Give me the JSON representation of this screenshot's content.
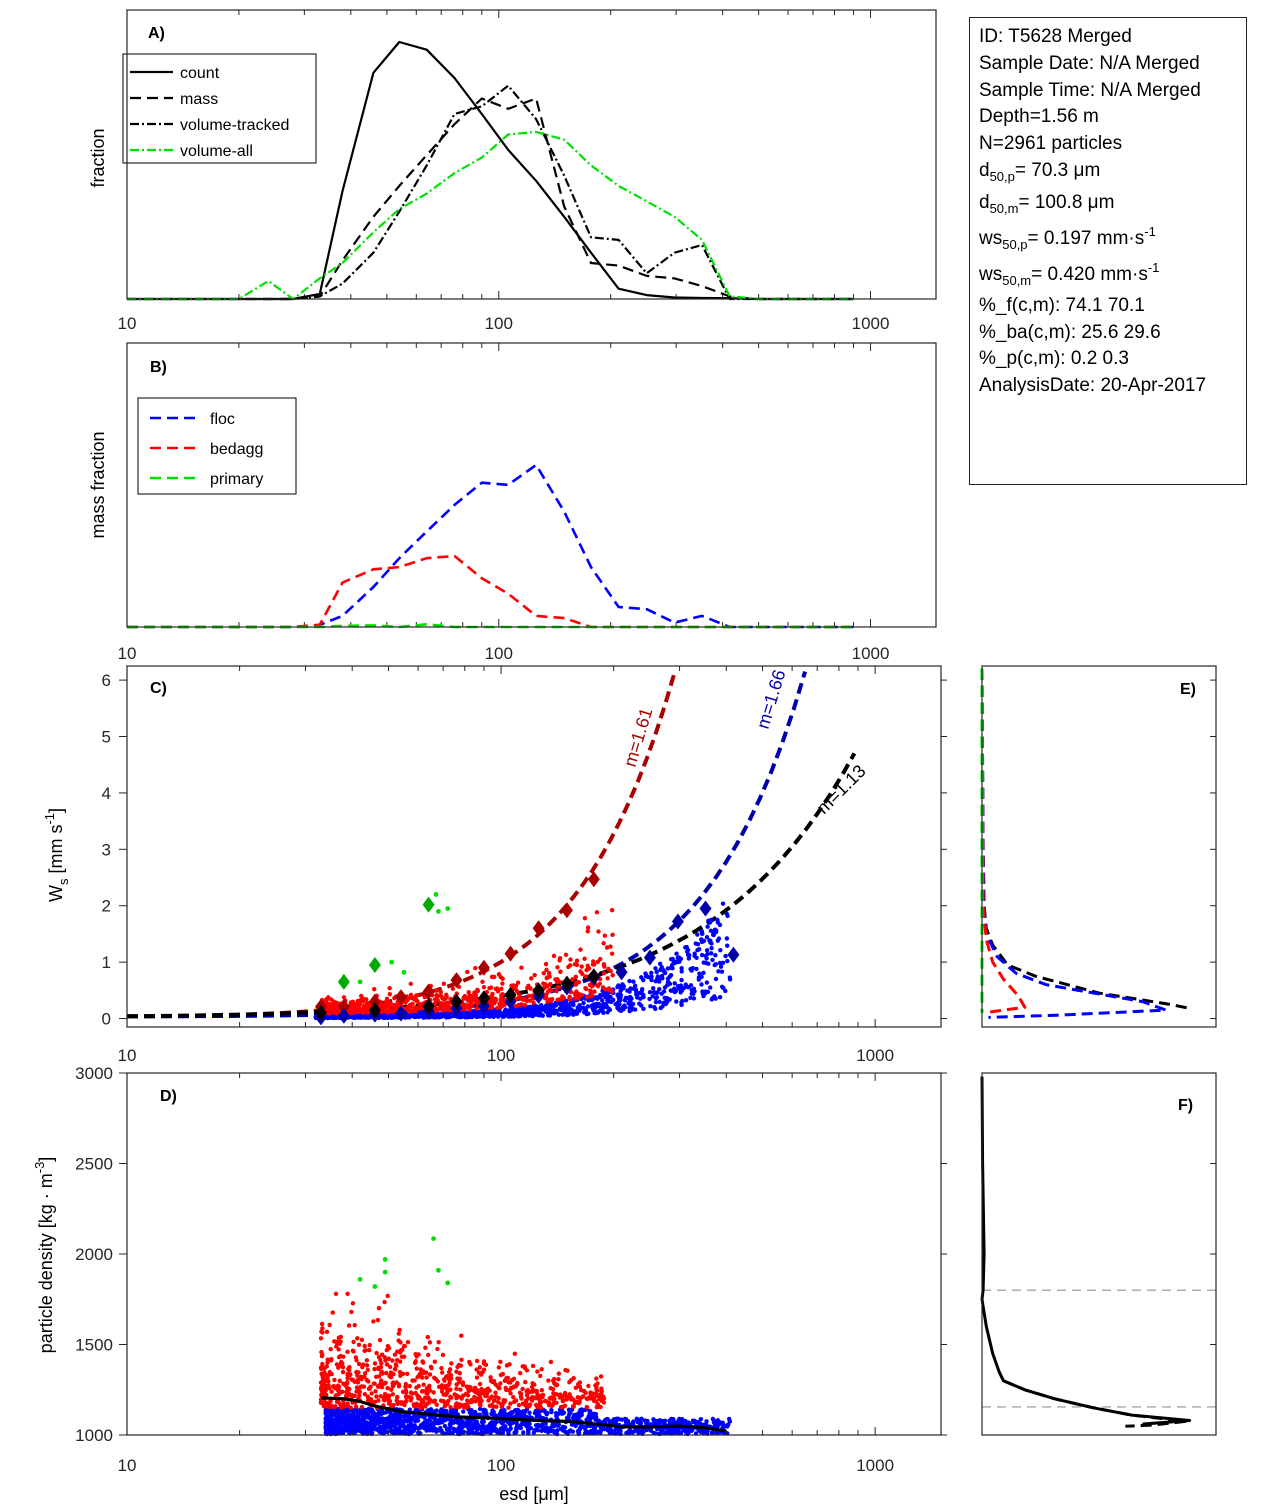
{
  "info_box": {
    "id": "ID: T5628 Merged",
    "sample_date": "Sample Date: N/A Merged",
    "sample_time": "Sample Time: N/A Merged",
    "depth": "Depth=1.56 m",
    "n": "N=2961 particles",
    "d50p_base": "d",
    "d50p_sub": "50,p",
    "d50p_val": "=  70.3 μm",
    "d50m_base": "d",
    "d50m_sub": "50,m",
    "d50m_val": "= 100.8 μm",
    "ws50p_base": "ws",
    "ws50p_sub": "50,p",
    "ws50p_val": "= 0.197 mm·s",
    "ws50p_sup": "-1",
    "ws50m_base": "ws",
    "ws50m_sub": "50,m",
    "ws50m_val": "= 0.420 mm·s",
    "ws50m_sup": "-1",
    "pct_f": "%_f(c,m): 74.1 70.1",
    "pct_ba": "%_ba(c,m): 25.6 29.6",
    "pct_p": "%_p(c,m): 0.2 0.3",
    "analysis_date": "AnalysisDate: 20-Apr-2017"
  },
  "chart_data": [
    {
      "panel": "A)",
      "type": "line",
      "xscale": "log",
      "xlim": [
        10,
        1500
      ],
      "xticks": [
        "10",
        "100",
        "1000"
      ],
      "ylabel": "fraction",
      "legend_position": "top-left",
      "x": [
        10,
        12,
        14,
        16,
        18,
        20,
        24,
        28,
        33,
        38,
        46,
        54,
        64,
        76,
        90,
        106,
        126,
        150,
        177,
        210,
        250,
        297,
        352,
        418,
        495,
        588,
        697,
        900
      ],
      "series": [
        {
          "name": "count",
          "style": "solid",
          "color": "#000000",
          "values": [
            0,
            0,
            0,
            0,
            0,
            0,
            0,
            0,
            0.02,
            0.42,
            0.88,
            1.0,
            0.97,
            0.86,
            0.72,
            0.58,
            0.46,
            0.32,
            0.18,
            0.04,
            0.015,
            0.006,
            0.004,
            0.003,
            0,
            0,
            0,
            0
          ]
        },
        {
          "name": "mass",
          "style": "dashed",
          "color": "#000000",
          "values": [
            0,
            0,
            0,
            0,
            0,
            0,
            0,
            0,
            0.01,
            0.15,
            0.32,
            0.44,
            0.56,
            0.68,
            0.78,
            0.74,
            0.78,
            0.36,
            0.14,
            0.13,
            0.09,
            0.08,
            0.05,
            0.01,
            0,
            0,
            0,
            0
          ]
        },
        {
          "name": "volume-tracked",
          "style": "dash-dot",
          "color": "#000000",
          "values": [
            0,
            0,
            0,
            0,
            0,
            0,
            0,
            0,
            0.01,
            0.06,
            0.18,
            0.34,
            0.52,
            0.72,
            0.75,
            0.83,
            0.7,
            0.48,
            0.24,
            0.23,
            0.1,
            0.18,
            0.21,
            0,
            0,
            0,
            0,
            0
          ]
        },
        {
          "name": "volume-all",
          "style": "dash-dot",
          "color": "#00e000",
          "values": [
            0,
            0,
            0,
            0,
            0,
            0,
            0.07,
            0,
            0.08,
            0.14,
            0.26,
            0.35,
            0.41,
            0.49,
            0.55,
            0.64,
            0.65,
            0.62,
            0.52,
            0.44,
            0.38,
            0.32,
            0.23,
            0.01,
            0,
            0,
            0,
            0
          ]
        }
      ]
    },
    {
      "panel": "B)",
      "type": "line",
      "xscale": "log",
      "xlim": [
        10,
        1500
      ],
      "xticks": [
        "10",
        "100",
        "1000"
      ],
      "ylabel": "mass fraction",
      "legend_position": "top-left",
      "x": [
        10,
        12,
        14,
        16,
        18,
        20,
        24,
        28,
        33,
        38,
        46,
        54,
        64,
        76,
        90,
        106,
        126,
        150,
        177,
        210,
        250,
        297,
        352,
        418,
        495,
        588,
        697,
        900
      ],
      "series": [
        {
          "name": "floc",
          "style": "dashed",
          "color": "#0000ff",
          "values": [
            0,
            0,
            0,
            0,
            0,
            0,
            0,
            0,
            0.01,
            0.05,
            0.18,
            0.31,
            0.43,
            0.55,
            0.65,
            0.64,
            0.73,
            0.52,
            0.27,
            0.09,
            0.08,
            0.02,
            0.05,
            0.0,
            0,
            0,
            0,
            0
          ]
        },
        {
          "name": "bedagg",
          "style": "dashed",
          "color": "#ff0000",
          "values": [
            0,
            0,
            0,
            0,
            0,
            0,
            0,
            0,
            0.01,
            0.2,
            0.26,
            0.27,
            0.31,
            0.32,
            0.22,
            0.15,
            0.05,
            0.04,
            0.0,
            0,
            0,
            0,
            0,
            0,
            0,
            0,
            0,
            0
          ]
        },
        {
          "name": "primary",
          "style": "dashed",
          "color": "#00e000",
          "values": [
            0,
            0,
            0,
            0,
            0,
            0,
            0,
            0,
            0,
            0.005,
            0.007,
            0.0,
            0.012,
            0.0,
            0,
            0,
            0,
            0,
            0,
            0,
            0,
            0,
            0,
            0,
            0,
            0,
            0,
            0
          ]
        }
      ]
    },
    {
      "panel": "C)",
      "type": "scatter",
      "xscale": "log",
      "xlim": [
        10,
        1500
      ],
      "ylim": [
        -0.15,
        6.25
      ],
      "xticks": [
        "10",
        "100",
        "1000"
      ],
      "yticks": [
        "0",
        "1",
        "2",
        "3",
        "4",
        "5",
        "6"
      ],
      "ylabel": "W_s [mm s^-1]",
      "point_clouds": [
        {
          "name": "floc",
          "color": "#0000ff",
          "x_range": [
            32,
            410
          ],
          "y_mode": "low"
        },
        {
          "name": "bedagg",
          "color": "#ff0000",
          "x_range": [
            33,
            200
          ],
          "y_mode": "high"
        },
        {
          "name": "primary",
          "color": "#00e000",
          "points": [
            [
              42,
              0.65
            ],
            [
              51,
              1.0
            ],
            [
              55,
              0.82
            ],
            [
              67,
              2.2
            ],
            [
              68,
              1.9
            ],
            [
              72,
              1.95
            ]
          ]
        }
      ],
      "bin_means": [
        {
          "name": "primary-mean",
          "color": "#00aa00",
          "points": [
            [
              38,
              0.65
            ],
            [
              46,
              0.95
            ],
            [
              64,
              2.02
            ]
          ]
        },
        {
          "name": "bedagg-mean",
          "color": "#aa0000",
          "points": [
            [
              33,
              0.21
            ],
            [
              38,
              0.21
            ],
            [
              46,
              0.3
            ],
            [
              54,
              0.38
            ],
            [
              64,
              0.48
            ],
            [
              76,
              0.68
            ],
            [
              90,
              0.9
            ],
            [
              106,
              1.15
            ],
            [
              126,
              1.6
            ],
            [
              150,
              1.92
            ],
            [
              177,
              2.47
            ]
          ]
        },
        {
          "name": "floc-mean",
          "color": "#0000aa",
          "points": [
            [
              33,
              0.02
            ],
            [
              38,
              0.05
            ],
            [
              46,
              0.07
            ],
            [
              54,
              0.09
            ],
            [
              64,
              0.13
            ],
            [
              76,
              0.18
            ],
            [
              90,
              0.22
            ],
            [
              106,
              0.3
            ],
            [
              126,
              0.4
            ],
            [
              150,
              0.55
            ],
            [
              177,
              0.72
            ],
            [
              210,
              0.82
            ],
            [
              250,
              1.08
            ],
            [
              297,
              1.72
            ],
            [
              352,
              1.95
            ],
            [
              418,
              1.13
            ]
          ]
        },
        {
          "name": "all-mean",
          "color": "#000000",
          "points": [
            [
              33,
              0.1
            ],
            [
              46,
              0.15
            ],
            [
              64,
              0.22
            ],
            [
              76,
              0.3
            ],
            [
              90,
              0.36
            ],
            [
              106,
              0.42
            ],
            [
              126,
              0.5
            ],
            [
              150,
              0.62
            ],
            [
              177,
              0.75
            ]
          ]
        }
      ],
      "fits": [
        {
          "name": "bedagg-fit",
          "label": "m=1.61",
          "color": "#aa0000",
          "x_range": [
            10,
            290
          ],
          "x_end_value": 290,
          "y_end": 6.1
        },
        {
          "name": "floc-fit",
          "label": "m=1.66",
          "color": "#0000aa",
          "x_range": [
            10,
            650
          ],
          "x_end_value": 650,
          "y_end": 6.15
        },
        {
          "name": "all-fit",
          "label": "m=1.13",
          "color": "#000000",
          "x_range": [
            10,
            880
          ],
          "x_end_value": 880,
          "y_end": 4.7
        }
      ]
    },
    {
      "panel": "D)",
      "type": "scatter",
      "xscale": "log",
      "xlim": [
        10,
        1500
      ],
      "ylim": [
        1000,
        3000
      ],
      "xticks": [
        "10",
        "100",
        "1000"
      ],
      "yticks": [
        "1000",
        "1500",
        "2000",
        "2500",
        "3000"
      ],
      "xlabel": "esd [μm]",
      "ylabel": "particle density [kg · m^-3]",
      "point_clouds": [
        {
          "name": "floc",
          "color": "#0000ff",
          "x_range": [
            32,
            410
          ],
          "y_range": [
            1000,
            1150
          ]
        },
        {
          "name": "bedagg",
          "color": "#ff0000",
          "x_range": [
            33,
            190
          ],
          "y_range": [
            1150,
            1780
          ]
        },
        {
          "name": "primary",
          "color": "#00e000",
          "points": [
            [
              42,
              1860
            ],
            [
              46,
              1820
            ],
            [
              49,
              1970
            ],
            [
              49,
              1900
            ],
            [
              66,
              2085
            ],
            [
              68,
              1910
            ],
            [
              72,
              1840
            ]
          ]
        }
      ],
      "mean_line": {
        "name": "density-mean",
        "color": "#000000",
        "x": [
          33,
          38,
          42,
          46,
          54,
          64,
          76,
          90,
          106,
          126,
          150,
          177,
          210,
          250,
          297,
          352,
          400
        ],
        "y": [
          1205,
          1200,
          1185,
          1160,
          1130,
          1115,
          1100,
          1095,
          1088,
          1080,
          1075,
          1062,
          1045,
          1045,
          1050,
          1040,
          1022
        ]
      }
    },
    {
      "panel": "E)",
      "type": "line",
      "orientation": "vertical-profile",
      "ylim": [
        -0.15,
        6.25
      ],
      "series": [
        {
          "name": "all",
          "color": "#000000",
          "style": "dashed",
          "y": [
            6.2,
            3.0,
            2.0,
            1.6,
            1.3,
            0.95,
            0.75,
            0.45,
            0.25,
            0.18
          ],
          "values": [
            0.0,
            0.005,
            0.01,
            0.02,
            0.05,
            0.12,
            0.25,
            0.55,
            0.88,
            0.97
          ]
        },
        {
          "name": "floc",
          "color": "#0000ff",
          "style": "dashed",
          "y": [
            6.2,
            3.0,
            2.0,
            1.5,
            1.1,
            0.8,
            0.6,
            0.3,
            0.15,
            0.06,
            0.02
          ],
          "values": [
            0.0,
            0.005,
            0.01,
            0.02,
            0.07,
            0.16,
            0.3,
            0.75,
            0.86,
            0.35,
            0.03
          ]
        },
        {
          "name": "bedagg",
          "color": "#ff0000",
          "style": "dashed",
          "y": [
            6.2,
            2.0,
            1.4,
            1.0,
            0.7,
            0.4,
            0.2,
            0.15,
            0.1
          ],
          "values": [
            0.0,
            0.005,
            0.02,
            0.05,
            0.1,
            0.17,
            0.2,
            0.1,
            0.01
          ]
        },
        {
          "name": "primary",
          "color": "#00e000",
          "style": "dashed",
          "y": [
            6.2,
            0.1
          ],
          "values": [
            0.0,
            0.0
          ]
        }
      ]
    },
    {
      "panel": "F)",
      "type": "line",
      "orientation": "vertical-profile",
      "ylim": [
        1000,
        3000
      ],
      "ref_lines": [
        1800,
        1155
      ],
      "series": [
        {
          "name": "density-profile",
          "color": "#000000",
          "style": "solid",
          "y": [
            2980,
            2500,
            2000,
            1800,
            1750,
            1600,
            1450,
            1350,
            1300,
            1250,
            1200,
            1150,
            1110,
            1080,
            1060
          ],
          "values": [
            0.0,
            0.003,
            0.01,
            0.005,
            0.0,
            0.02,
            0.05,
            0.08,
            0.1,
            0.2,
            0.34,
            0.52,
            0.7,
            0.97,
            0.75
          ]
        },
        {
          "name": "density-profile-dashed",
          "color": "#000000",
          "style": "dashed",
          "y": [
            1300,
            1250,
            1200,
            1150,
            1110,
            1075,
            1055,
            1048
          ],
          "values": [
            0.1,
            0.2,
            0.34,
            0.52,
            0.7,
            0.95,
            0.8,
            0.67
          ]
        }
      ]
    }
  ]
}
